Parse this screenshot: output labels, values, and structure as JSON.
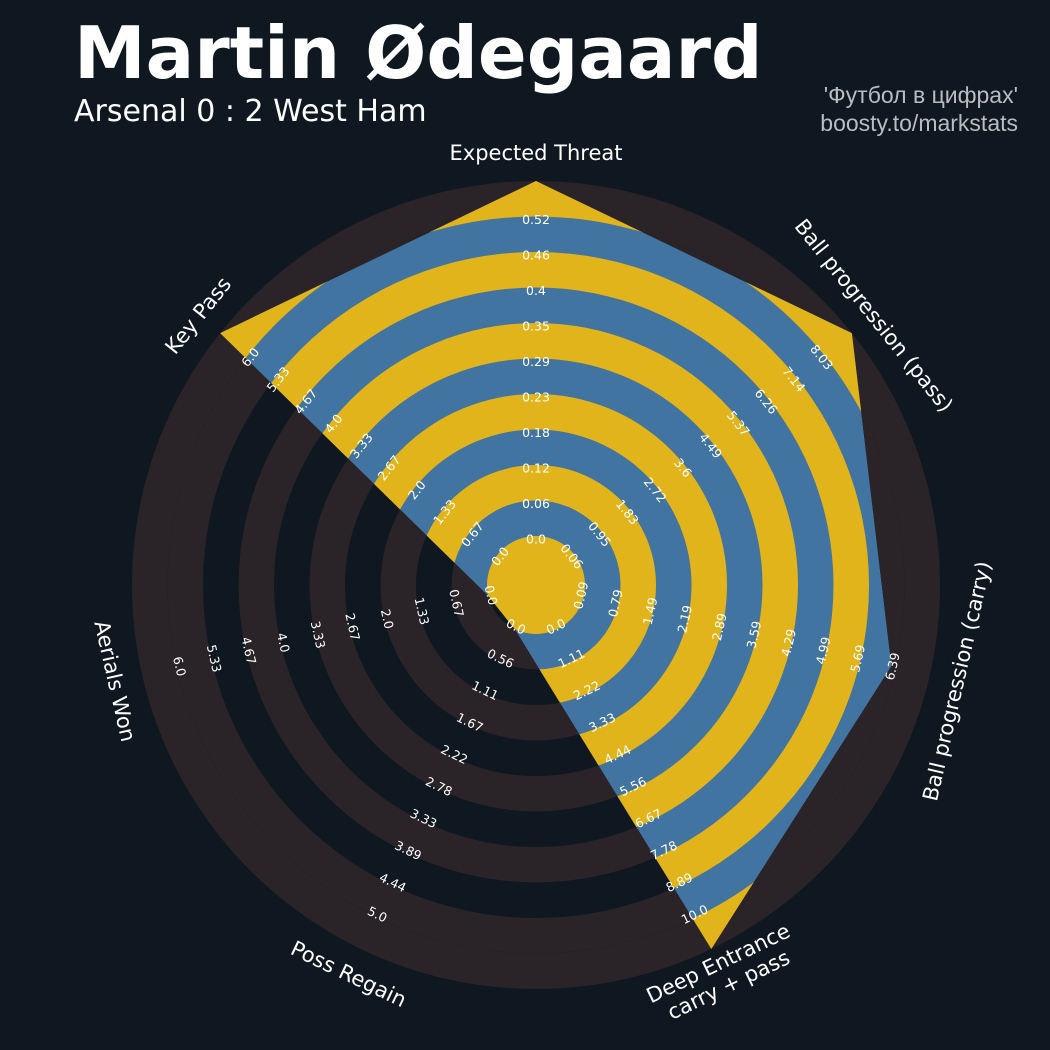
{
  "header": {
    "title": "Martin Ødegaard",
    "subtitle": "Arsenal 0 : 2 West Ham",
    "credit_line1": "'Футбол в цифрах'",
    "credit_line2": "boosty.to/markstats"
  },
  "colors": {
    "background": "#0f1820",
    "ring_dark": "#2a2328",
    "ring_light": "#0f1820",
    "player_fill": "#4174a0",
    "ring_on_player": "#e2b41c",
    "text": "#ffffff",
    "credit": "#b9bdc2"
  },
  "chart_data": {
    "type": "radar",
    "title": "Martin Ødegaard",
    "subtitle": "Arsenal 0 : 2 West Ham",
    "params": [
      {
        "label": "Expected Threat",
        "min": 0.0,
        "max": 0.52,
        "ticks": [
          "0.0",
          "0.06",
          "0.12",
          "0.18",
          "0.23",
          "0.29",
          "0.35",
          "0.4",
          "0.46",
          "0.52"
        ],
        "value": 0.52
      },
      {
        "label": "Ball progression (pass)",
        "min": 0.06,
        "max": 8.03,
        "ticks": [
          "0.06",
          "0.95",
          "1.83",
          "2.72",
          "3.6",
          "4.49",
          "5.37",
          "6.26",
          "7.14",
          "8.03"
        ],
        "value": 8.03
      },
      {
        "label": "Ball progression (carry)",
        "min": 0.09,
        "max": 6.39,
        "ticks": [
          "0.09",
          "0.79",
          "1.49",
          "2.19",
          "2.89",
          "3.59",
          "4.29",
          "4.99",
          "5.69",
          "6.39"
        ],
        "value": 5.69
      },
      {
        "label": "Deep Entrance\ncarry + pass",
        "min": 0.0,
        "max": 10.0,
        "ticks": [
          "0.0",
          "1.11",
          "2.22",
          "3.33",
          "4.44",
          "5.56",
          "6.67",
          "7.78",
          "8.89",
          "10.0"
        ],
        "value": 10.0
      },
      {
        "label": "Poss Regain",
        "min": 0.0,
        "max": 5.0,
        "ticks": [
          "0.0",
          "0.56",
          "1.11",
          "1.67",
          "2.22",
          "2.78",
          "3.33",
          "3.89",
          "4.44",
          "5.0"
        ],
        "value": 0.0
      },
      {
        "label": "Aerials Won",
        "min": 0.0,
        "max": 6.0,
        "ticks": [
          "0.0",
          "0.67",
          "1.33",
          "2.0",
          "2.67",
          "3.33",
          "4.0",
          "4.67",
          "5.33",
          "6.0"
        ],
        "value": 0.0
      },
      {
        "label": "Key Pass",
        "min": 0.0,
        "max": 6.0,
        "ticks": [
          "0.0",
          "0.67",
          "1.33",
          "2.0",
          "2.67",
          "3.33",
          "4.0",
          "4.67",
          "5.33",
          "6.0"
        ],
        "value": 6.0
      }
    ]
  }
}
